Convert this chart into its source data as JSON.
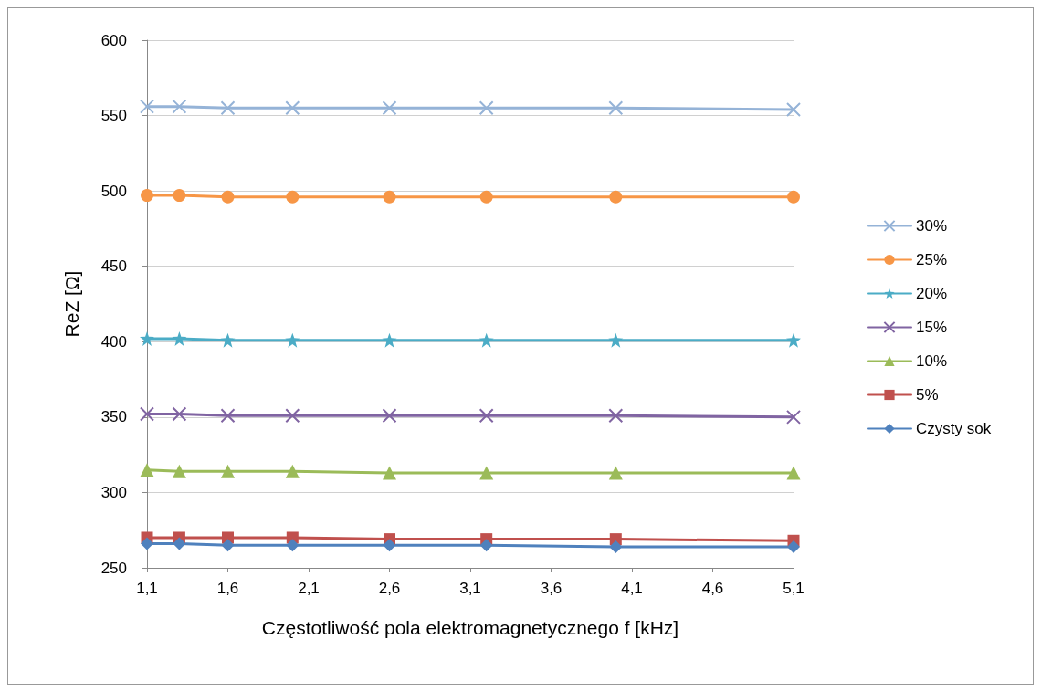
{
  "chart_data": {
    "type": "line",
    "xlabel": "Częstotliwość pola elektromagnetycznego f [kHz]",
    "ylabel": "ReZ [Ω]",
    "x": [
      1.1,
      1.3,
      1.6,
      2.0,
      2.6,
      3.2,
      4.0,
      5.1
    ],
    "xlim": [
      1.1,
      5.1
    ],
    "xticks": [
      {
        "value": 1.1,
        "label": "1,1"
      },
      {
        "value": 1.6,
        "label": "1,6"
      },
      {
        "value": 2.1,
        "label": "2,1"
      },
      {
        "value": 2.6,
        "label": "2,6"
      },
      {
        "value": 3.1,
        "label": "3,1"
      },
      {
        "value": 3.6,
        "label": "3,6"
      },
      {
        "value": 4.1,
        "label": "4,1"
      },
      {
        "value": 4.6,
        "label": "4,6"
      },
      {
        "value": 5.1,
        "label": "5,1"
      }
    ],
    "ylim": [
      250,
      600
    ],
    "yticks": [
      250,
      300,
      350,
      400,
      450,
      500,
      550,
      600
    ],
    "grid": "y",
    "legend": "right",
    "line_style": "solid",
    "series": [
      {
        "name": "30%",
        "color": "#95b3d7",
        "marker": "cross",
        "values": [
          556,
          556,
          555,
          555,
          555,
          555,
          555,
          554
        ]
      },
      {
        "name": "25%",
        "color": "#f79646",
        "marker": "circle",
        "values": [
          497,
          497,
          496,
          496,
          496,
          496,
          496,
          496
        ]
      },
      {
        "name": "20%",
        "color": "#4bacc6",
        "marker": "star",
        "values": [
          402,
          402,
          401,
          401,
          401,
          401,
          401,
          401
        ]
      },
      {
        "name": "15%",
        "color": "#8064a2",
        "marker": "cross",
        "values": [
          352,
          352,
          351,
          351,
          351,
          351,
          351,
          350
        ]
      },
      {
        "name": "10%",
        "color": "#9bbb59",
        "marker": "triangle",
        "values": [
          315,
          314,
          314,
          314,
          313,
          313,
          313,
          313
        ]
      },
      {
        "name": "5%",
        "color": "#c0504d",
        "marker": "square",
        "values": [
          270,
          270,
          270,
          270,
          269,
          269,
          269,
          268
        ]
      },
      {
        "name": "Czysty sok",
        "color": "#4f81bd",
        "marker": "diamond",
        "values": [
          266,
          266,
          265,
          265,
          265,
          265,
          264,
          264
        ]
      }
    ]
  }
}
